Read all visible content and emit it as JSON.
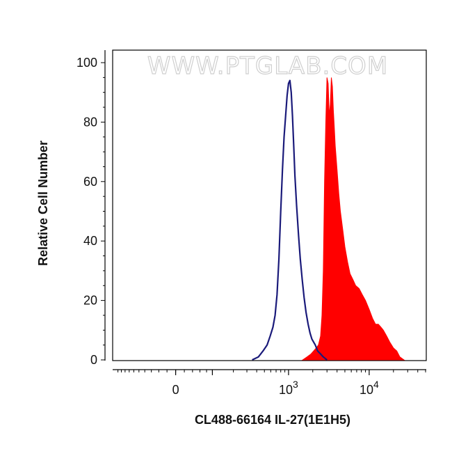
{
  "chart_data": {
    "type": "area",
    "watermark": "WWW.PTGLAB.COM",
    "xlabel": "CL488-66164 IL-27(1E1H5)",
    "ylabel": "Relative Cell Number",
    "x_scale": "biexponential",
    "ylim": [
      0,
      100
    ],
    "y_ticks": [
      "0",
      "20",
      "40",
      "60",
      "80",
      "100"
    ],
    "x_ticks": [
      {
        "value": 0,
        "base": "0",
        "exp": ""
      },
      {
        "value": 1000,
        "base": "10",
        "exp": "3"
      },
      {
        "value": 10000,
        "base": "10",
        "exp": "4"
      }
    ],
    "grid": false,
    "colors": {
      "stained": "#ff0000",
      "control": "#1a1a7a"
    },
    "series": [
      {
        "role": "control",
        "style": "outline",
        "x": [
          350,
          420,
          480,
          540,
          590,
          640,
          680,
          720,
          760,
          800,
          840,
          880,
          920,
          960,
          1000,
          1040,
          1080,
          1120,
          1160,
          1200,
          1260,
          1330,
          1400,
          1480,
          1560,
          1650,
          1750,
          1850,
          1950,
          2050,
          2150,
          2300,
          2500,
          2700,
          3000
        ],
        "y": [
          0,
          1,
          3,
          5,
          8,
          11,
          15,
          22,
          34,
          50,
          64,
          75,
          82,
          89,
          93,
          94,
          90,
          82,
          72,
          62,
          52,
          42,
          34,
          27,
          21,
          16,
          12,
          9,
          7,
          6,
          5,
          3,
          2,
          1,
          0
        ]
      },
      {
        "role": "stained",
        "style": "filled",
        "x": [
          1500,
          1700,
          1900,
          2050,
          2200,
          2350,
          2500,
          2600,
          2700,
          2800,
          2900,
          3000,
          3100,
          3200,
          3300,
          3400,
          3500,
          3600,
          3700,
          3800,
          4000,
          4200,
          4400,
          4700,
          5000,
          5400,
          5800,
          6300,
          6800,
          7500,
          8200,
          9000,
          10000,
          11000,
          12000,
          13000,
          14000,
          15000,
          16500,
          18000,
          20000,
          22000,
          24000,
          27000
        ],
        "y": [
          0,
          1,
          2,
          3,
          4,
          5,
          8,
          15,
          30,
          60,
          80,
          95,
          93,
          82,
          86,
          95,
          92,
          84,
          78,
          72,
          64,
          56,
          50,
          44,
          38,
          33,
          29,
          27,
          25,
          24,
          22,
          20,
          17,
          14,
          12,
          12,
          11,
          10,
          8,
          6,
          4,
          3,
          1,
          0
        ]
      }
    ]
  }
}
